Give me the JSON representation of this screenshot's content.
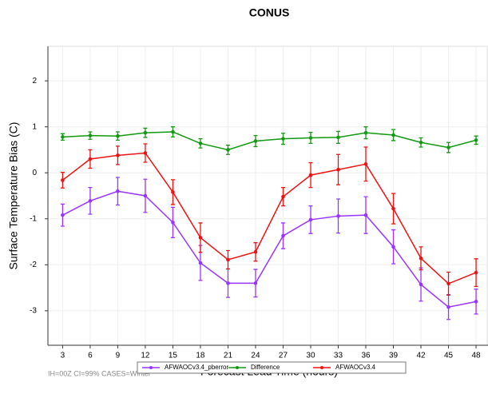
{
  "chart_data": {
    "type": "line",
    "title": "CONUS",
    "x_label": "Forecast Lead Time (hours)",
    "y_label": "Surface Temperature Bias (C)",
    "note": "IH=00Z CI=99% CASES=Winter",
    "x": [
      3,
      6,
      9,
      12,
      15,
      18,
      21,
      24,
      27,
      30,
      33,
      36,
      39,
      42,
      45,
      48
    ],
    "xlim": [
      1.4,
      49.3
    ],
    "xticks": [
      3,
      6,
      9,
      12,
      15,
      18,
      21,
      24,
      27,
      30,
      33,
      36,
      39,
      42,
      45,
      48
    ],
    "ylim": [
      -3.75,
      2.75
    ],
    "yticks": [
      -3,
      -2,
      -1,
      0,
      1,
      2
    ],
    "grid": true,
    "series": [
      {
        "name": "AFWAOCv3.4_pberror",
        "color": "#9933ff",
        "values": [
          -0.92,
          -0.61,
          -0.4,
          -0.5,
          -1.08,
          -1.96,
          -2.4,
          -2.4,
          -1.37,
          -1.02,
          -0.94,
          -0.92,
          -1.61,
          -2.43,
          -2.92,
          -2.8
        ],
        "errors": [
          0.24,
          0.29,
          0.3,
          0.36,
          0.33,
          0.38,
          0.31,
          0.3,
          0.28,
          0.3,
          0.37,
          0.4,
          0.37,
          0.36,
          0.27,
          0.27
        ]
      },
      {
        "name": "Difference",
        "color": "#119911",
        "values": [
          0.78,
          0.81,
          0.8,
          0.87,
          0.89,
          0.64,
          0.5,
          0.69,
          0.74,
          0.76,
          0.77,
          0.87,
          0.82,
          0.66,
          0.55,
          0.71
        ],
        "errors": [
          0.07,
          0.08,
          0.09,
          0.1,
          0.11,
          0.1,
          0.1,
          0.12,
          0.12,
          0.12,
          0.13,
          0.13,
          0.12,
          0.1,
          0.11,
          0.09
        ]
      },
      {
        "name": "AFWAOCv3.4",
        "color": "#ee1111",
        "values": [
          -0.16,
          0.3,
          0.38,
          0.43,
          -0.42,
          -1.41,
          -1.89,
          -1.72,
          -0.52,
          -0.05,
          0.07,
          0.19,
          -0.78,
          -1.86,
          -2.41,
          -2.17
        ],
        "errors": [
          0.17,
          0.2,
          0.2,
          0.2,
          0.27,
          0.32,
          0.2,
          0.2,
          0.2,
          0.27,
          0.33,
          0.37,
          0.33,
          0.25,
          0.25,
          0.3
        ]
      }
    ]
  }
}
